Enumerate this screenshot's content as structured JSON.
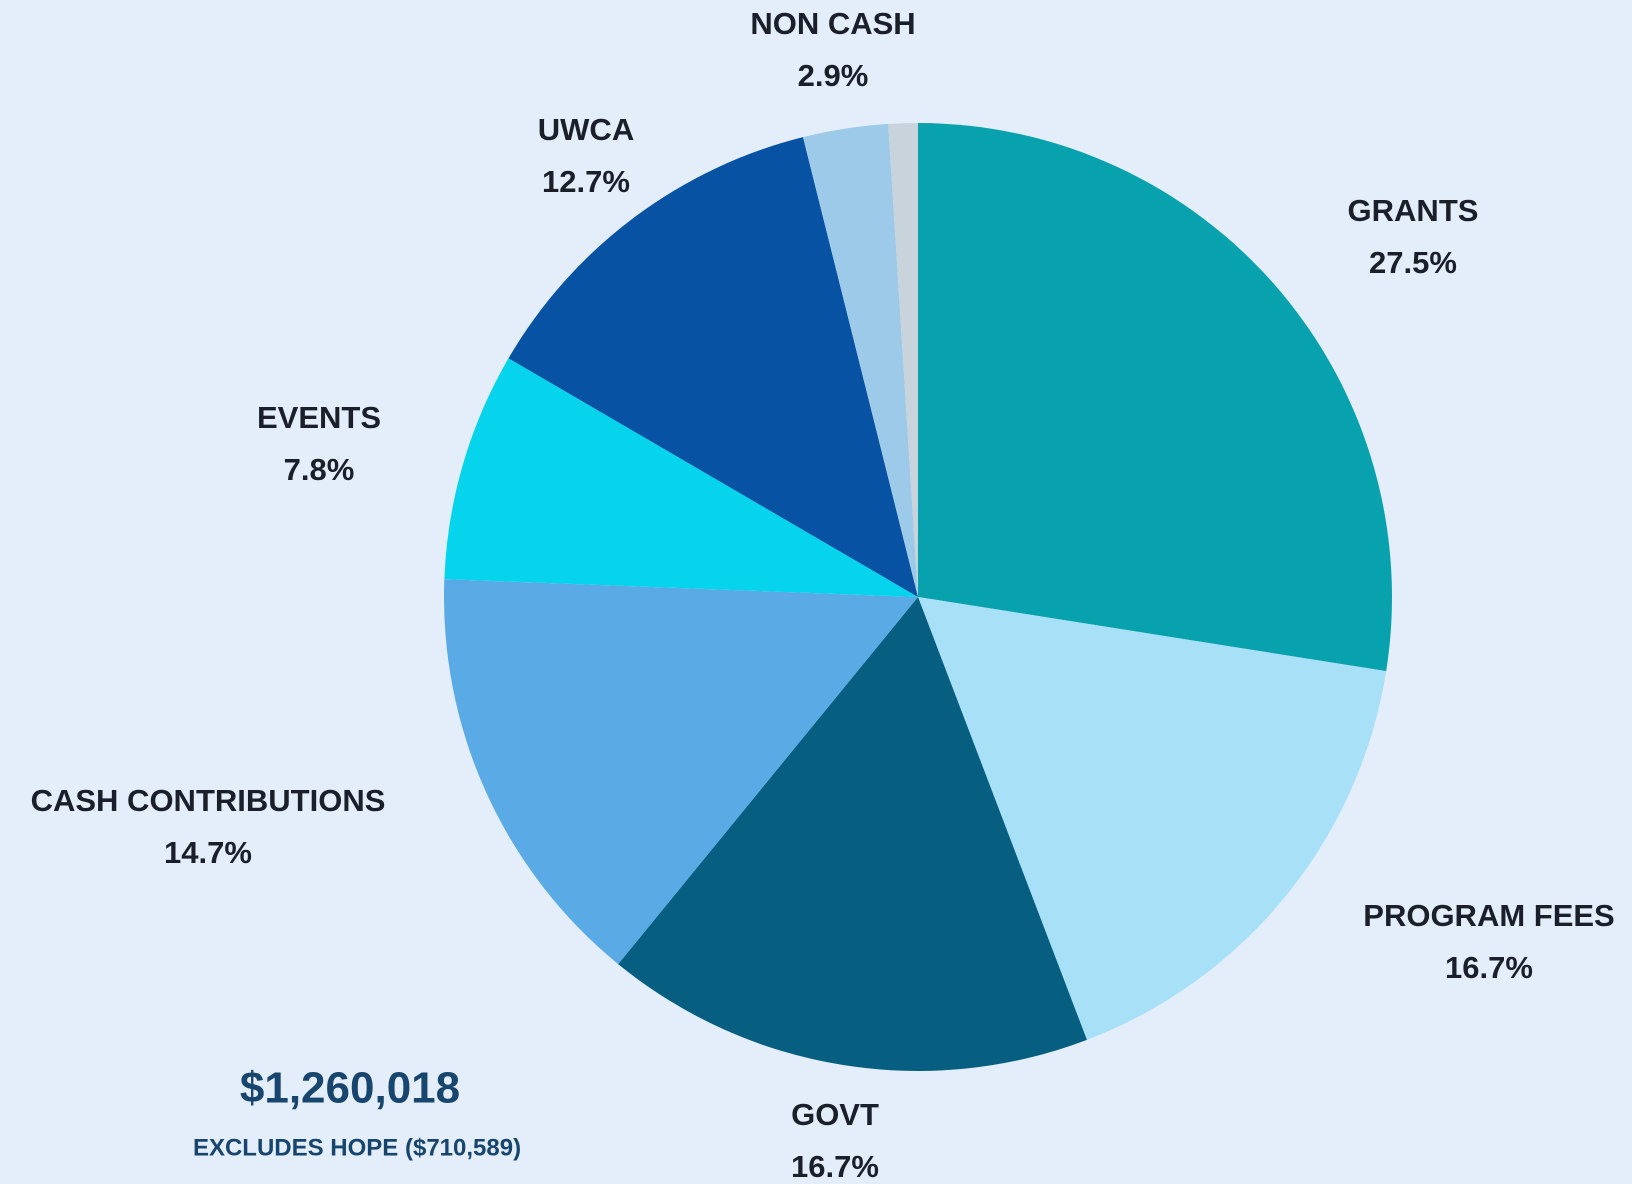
{
  "chart_data": {
    "type": "pie",
    "categories": [
      "GRANTS",
      "PROGRAM FEES",
      "GOVT",
      "CASH CONTRIBUTIONS",
      "EVENTS",
      "UWCA",
      "NON CASH",
      null
    ],
    "values": [
      27.5,
      16.7,
      16.7,
      14.7,
      7.8,
      12.7,
      2.9,
      1.0
    ],
    "value_labels": [
      "27.5%",
      "16.7%",
      "16.7%",
      "14.7%",
      "7.8%",
      "12.7%",
      "2.9%",
      null
    ],
    "colors": [
      "#08a2ae",
      "#a8e0f8",
      "#065e80",
      "#5aabe5",
      "#06d4ec",
      "#0752a3",
      "#9ccae8",
      "#c9d3dc"
    ],
    "total": "$1,260,018",
    "note": "EXCLUDES HOPE ($710,589)"
  }
}
